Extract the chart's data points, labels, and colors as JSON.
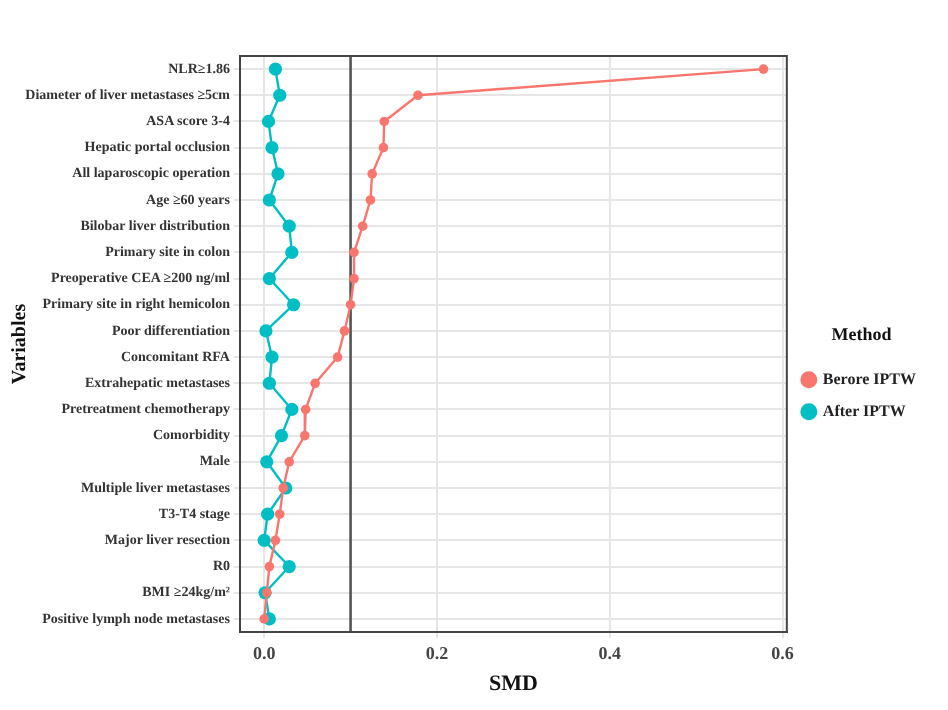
{
  "chart_data": {
    "type": "line",
    "orientation": "horizontal",
    "xlabel": "SMD",
    "ylabel": "Variables",
    "legend_title": "Method",
    "categories": [
      "NLR≥1.86",
      "Diameter of liver metastases ≥5cm",
      "ASA score 3-4",
      "Hepatic portal occlusion",
      "All laparoscopic operation",
      "Age ≥60 years",
      "Bilobar liver distribution",
      "Primary site in colon",
      "Preoperative CEA ≥200 ng/ml",
      "Primary site in right hemicolon",
      "Poor differentiation",
      "Concomitant RFA",
      "Extrahepatic metastases",
      "Pretreatment chemotherapy",
      "Comorbidity",
      "Male",
      "Multiple liver metastases",
      "T3-T4 stage",
      "Major liver resection",
      "R0",
      "BMI ≥24kg/m²",
      "Positive lymph node metastases"
    ],
    "series": [
      {
        "name": "Berore IPTW",
        "color": "#f8766d",
        "values": [
          0.578,
          0.178,
          0.139,
          0.138,
          0.125,
          0.123,
          0.114,
          0.104,
          0.104,
          0.1,
          0.093,
          0.085,
          0.059,
          0.048,
          0.047,
          0.029,
          0.022,
          0.018,
          0.013,
          0.006,
          0.003,
          0.0
        ]
      },
      {
        "name": "After IPTW",
        "color": "#00bfc4",
        "values": [
          0.013,
          0.018,
          0.005,
          0.009,
          0.016,
          0.006,
          0.029,
          0.032,
          0.006,
          0.034,
          0.002,
          0.009,
          0.006,
          0.032,
          0.02,
          0.003,
          0.025,
          0.004,
          0.0,
          0.029,
          0.001,
          0.006
        ]
      }
    ],
    "xlim": [
      -0.028,
      0.605
    ],
    "xticks": [
      {
        "value": 0,
        "label": "0.0"
      },
      0.2,
      0.4,
      {
        "value": 0.6,
        "label": "0.6"
      }
    ],
    "ref_lines": [
      {
        "axis": "x",
        "value": 0.1,
        "color": "#555555",
        "line_style": "solid"
      }
    ],
    "grid": true,
    "legend": "right",
    "marker": "circle",
    "line_style": "solid"
  }
}
